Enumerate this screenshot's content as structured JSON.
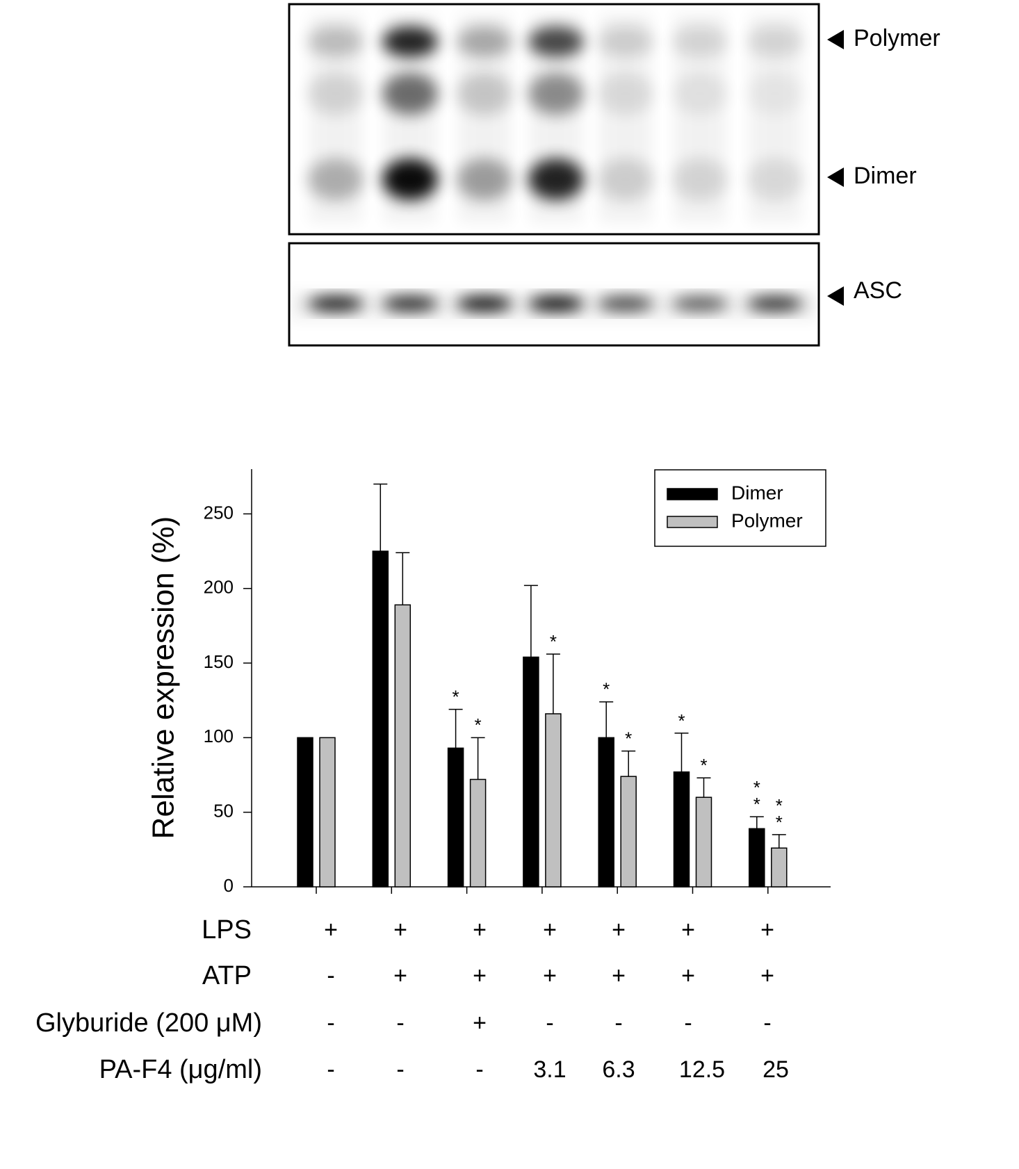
{
  "blot": {
    "labels": [
      "Polymer",
      "Dimer",
      "ASC"
    ]
  },
  "chart_data": {
    "type": "bar",
    "y_label": "Relative expression (%)",
    "categories": [
      null,
      null,
      null,
      null,
      null,
      null,
      null
    ],
    "series": [
      {
        "name": "Dimer",
        "color": "#000000",
        "values": [
          100,
          225,
          93,
          154,
          100,
          77,
          39
        ],
        "errors": [
          null,
          45,
          26,
          48,
          24,
          26,
          8
        ],
        "significance": [
          null,
          null,
          [
            "*"
          ],
          null,
          [
            "*"
          ],
          [
            "*"
          ],
          [
            "*",
            "*"
          ]
        ]
      },
      {
        "name": "Polymer",
        "color": "#c0c0c0",
        "values": [
          100,
          189,
          72,
          116,
          74,
          60,
          26
        ],
        "errors": [
          null,
          35,
          28,
          40,
          17,
          13,
          9
        ],
        "significance": [
          null,
          null,
          [
            "*"
          ],
          [
            "*"
          ],
          [
            "*"
          ],
          [
            "*"
          ],
          [
            "*",
            "*"
          ]
        ]
      }
    ],
    "ylim": [
      0,
      280
    ],
    "yticks": [
      0,
      50,
      100,
      150,
      200,
      250
    ],
    "grid": false,
    "legend": "upper right",
    "conditions": [
      {
        "label": "LPS",
        "values": [
          "+",
          "+",
          "+",
          "+",
          "+",
          "+",
          "+"
        ]
      },
      {
        "label": "ATP",
        "values": [
          "-",
          "+",
          "+",
          "+",
          "+",
          "+",
          "+"
        ]
      },
      {
        "label": "Glyburide (200 μM)",
        "values": [
          "-",
          "-",
          "+",
          "-",
          "-",
          "-",
          "-"
        ]
      },
      {
        "label": "PA-F4 (μg/ml)",
        "values": [
          "-",
          "-",
          "-",
          "3.1",
          "6.3",
          "12.5",
          "25"
        ]
      }
    ]
  }
}
